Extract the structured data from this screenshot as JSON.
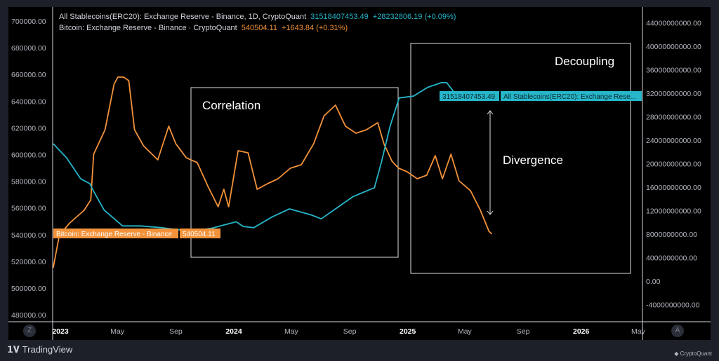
{
  "legend": {
    "series1_title": "All Stablecoins(ERC20): Exchange Reserve - Binance, 1D, CryptoQuant",
    "series1_value": "31518407453.49",
    "series1_change": "+28232806.19 (+0.09%)",
    "series2_title": "Bitcoin: Exchange Reserve - Binance · CryptoQuant",
    "series2_value": "540504.11",
    "series2_change": "+1643.84 (+0.31%)"
  },
  "price_tags": {
    "btc_label": "Bitcoin: Exchange Reserve - Binance",
    "btc_value": "540504.11",
    "stable_label": "All Stablecoins(ERC20): Exchange Rese...",
    "stable_value": "31518407453.49"
  },
  "annotations": {
    "correlation": "Correlation",
    "decoupling": "Decoupling",
    "divergence": "Divergence"
  },
  "footer": {
    "tradingview": "TradingView",
    "cryptoquant": "CryptoQuant",
    "z_button": "Z",
    "a_button": "A"
  },
  "colors": {
    "btc": "#f2923a",
    "stable": "#26b5c9",
    "background": "#000000"
  },
  "chart_data": {
    "type": "line",
    "grid": false,
    "legend_placement": "top-left",
    "left_axis": {
      "ylim": [
        480000,
        700000
      ],
      "ticks": [
        "700000.00",
        "680000.00",
        "660000.00",
        "640000.00",
        "620000.00",
        "600000.00",
        "580000.00",
        "560000.00",
        "540000.00",
        "520000.00",
        "500000.00",
        "480000.00"
      ]
    },
    "right_axis": {
      "ylim": [
        -4000000000,
        44000000000
      ],
      "ticks": [
        "44000000000.00",
        "40000000000.00",
        "36000000000.00",
        "32000000000.00",
        "28000000000.00",
        "24000000000.00",
        "20000000000.00",
        "16000000000.00",
        "12000000000.00",
        "8000000000.00",
        "4000000000.00",
        "0.00",
        "-4000000000.00"
      ]
    },
    "x_ticks": [
      {
        "label": "2023",
        "date": "2023-01-01",
        "year": true
      },
      {
        "label": "May",
        "date": "2023-05-01"
      },
      {
        "label": "Sep",
        "date": "2023-09-01"
      },
      {
        "label": "2024",
        "date": "2024-01-01",
        "year": true
      },
      {
        "label": "May",
        "date": "2024-05-01"
      },
      {
        "label": "Sep",
        "date": "2024-09-01"
      },
      {
        "label": "2025",
        "date": "2025-01-01",
        "year": true
      },
      {
        "label": "May",
        "date": "2025-05-01"
      },
      {
        "label": "Sep",
        "date": "2025-09-01"
      },
      {
        "label": "2026",
        "date": "2026-01-01",
        "year": true
      },
      {
        "label": "May",
        "date": "2026-05-01"
      }
    ],
    "series": [
      {
        "name": "Bitcoin: Exchange Reserve - Binance",
        "axis": "left",
        "points": [
          [
            "2022-12-17",
            515200
          ],
          [
            "2022-12-30",
            539900
          ],
          [
            "2023-01-21",
            548800
          ],
          [
            "2023-02-20",
            558250
          ],
          [
            "2023-03-06",
            566100
          ],
          [
            "2023-03-12",
            600250
          ],
          [
            "2023-04-05",
            618600
          ],
          [
            "2023-04-24",
            652750
          ],
          [
            "2023-05-02",
            658000
          ],
          [
            "2023-05-14",
            658000
          ],
          [
            "2023-05-25",
            655400
          ],
          [
            "2023-06-06",
            618600
          ],
          [
            "2023-06-25",
            606550
          ],
          [
            "2023-07-25",
            596050
          ],
          [
            "2023-08-17",
            621250
          ],
          [
            "2023-09-01",
            608100
          ],
          [
            "2023-09-23",
            597600
          ],
          [
            "2023-10-16",
            593950
          ],
          [
            "2023-11-07",
            576600
          ],
          [
            "2023-11-29",
            560900
          ],
          [
            "2023-12-11",
            574000
          ],
          [
            "2023-12-21",
            560900
          ],
          [
            "2024-01-10",
            602900
          ],
          [
            "2024-01-31",
            601300
          ],
          [
            "2024-02-19",
            574000
          ],
          [
            "2024-03-12",
            578200
          ],
          [
            "2024-04-03",
            581900
          ],
          [
            "2024-04-29",
            589750
          ],
          [
            "2024-05-22",
            592400
          ],
          [
            "2024-06-17",
            608100
          ],
          [
            "2024-07-09",
            629100
          ],
          [
            "2024-08-02",
            637000
          ],
          [
            "2024-08-23",
            621250
          ],
          [
            "2024-09-14",
            616000
          ],
          [
            "2024-10-06",
            618600
          ],
          [
            "2024-10-30",
            623900
          ],
          [
            "2024-11-12",
            608100
          ],
          [
            "2024-11-29",
            595000
          ],
          [
            "2024-12-13",
            589750
          ],
          [
            "2024-12-31",
            587100
          ],
          [
            "2025-01-21",
            581900
          ],
          [
            "2025-02-10",
            584500
          ],
          [
            "2025-02-28",
            599200
          ],
          [
            "2025-03-15",
            581900
          ],
          [
            "2025-04-02",
            600250
          ],
          [
            "2025-04-19",
            580300
          ],
          [
            "2025-05-13",
            573000
          ],
          [
            "2025-06-03",
            558250
          ],
          [
            "2025-06-21",
            542500
          ],
          [
            "2025-06-27",
            540504.11
          ]
        ]
      },
      {
        "name": "All Stablecoins(ERC20): Exchange Reserve - Binance",
        "axis": "right",
        "points": [
          [
            "2022-12-17",
            23400000000
          ],
          [
            "2023-01-14",
            21000000000
          ],
          [
            "2023-02-13",
            17400000000
          ],
          [
            "2023-03-04",
            16600000000
          ],
          [
            "2023-03-10",
            15600000000
          ],
          [
            "2023-04-03",
            12100000000
          ],
          [
            "2023-05-12",
            9400000000
          ],
          [
            "2023-06-19",
            9400000000
          ],
          [
            "2023-08-02",
            9100000000
          ],
          [
            "2023-10-01",
            8500000000
          ],
          [
            "2023-11-15",
            9000000000
          ],
          [
            "2024-01-06",
            10100000000
          ],
          [
            "2024-01-21",
            9300000000
          ],
          [
            "2024-02-12",
            9100000000
          ],
          [
            "2024-03-21",
            10900000000
          ],
          [
            "2024-04-27",
            12300000000
          ],
          [
            "2024-06-11",
            11300000000
          ],
          [
            "2024-07-03",
            10600000000
          ],
          [
            "2024-08-09",
            12700000000
          ],
          [
            "2024-09-08",
            14400000000
          ],
          [
            "2024-10-23",
            15900000000
          ],
          [
            "2024-11-07",
            20400000000
          ],
          [
            "2024-11-25",
            26400000000
          ],
          [
            "2024-12-14",
            31200000000
          ],
          [
            "2025-01-13",
            31500000000
          ],
          [
            "2025-02-12",
            33000000000
          ],
          [
            "2025-03-13",
            33800000000
          ],
          [
            "2025-03-24",
            33800000000
          ],
          [
            "2025-04-12",
            31800000000
          ],
          [
            "2025-05-12",
            31900000000
          ],
          [
            "2025-06-11",
            32000000000
          ],
          [
            "2025-07-04",
            31518407453.49
          ]
        ]
      }
    ]
  }
}
